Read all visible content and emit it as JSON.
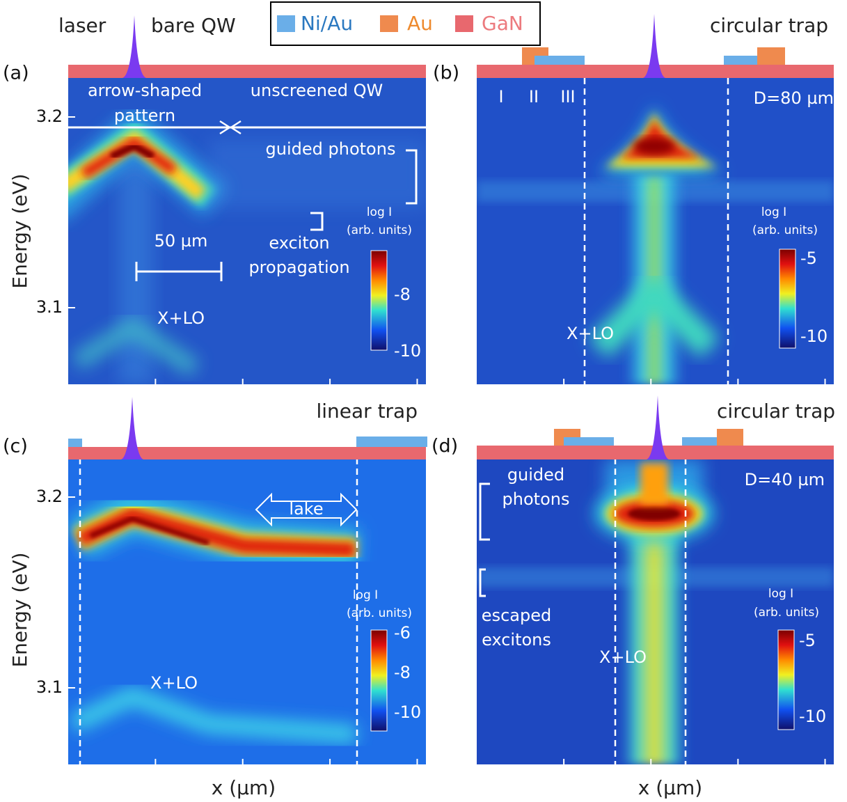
{
  "legend": {
    "items": [
      {
        "label": "Ni/Au",
        "color": "#6aaee8",
        "text_color": "#2a78c0"
      },
      {
        "label": "Au",
        "color": "#ef8a4e",
        "text_color": "#ee8a2e"
      },
      {
        "label": "GaN",
        "color": "#e8686e",
        "text_color": "#ec7a7e"
      }
    ]
  },
  "panels": [
    {
      "label": "(a)",
      "top_labels": [
        "laser",
        "bare QW"
      ],
      "annotations": [
        "arrow-shaped",
        "pattern",
        "unscreened QW",
        "guided photons",
        "exciton",
        "propagation",
        "50 µm",
        "X+LO"
      ],
      "y_ticks": [
        "3.2",
        "3.1"
      ],
      "y_label": "Energy (eV)",
      "colorbar": {
        "title": "log I",
        "subtitle": "(arb. units)",
        "ticks": [
          "-8",
          "-10"
        ]
      }
    },
    {
      "label": "(b)",
      "top_labels": [
        "circular trap"
      ],
      "annotations": [
        "I",
        "II",
        "III",
        "D=80 µm",
        "X+LO"
      ],
      "colorbar": {
        "title": "log I",
        "subtitle": "(arb. units)",
        "ticks": [
          "-5",
          "-10"
        ]
      }
    },
    {
      "label": "(c)",
      "top_labels": [
        "linear trap"
      ],
      "annotations": [
        "lake",
        "X+LO"
      ],
      "y_ticks": [
        "3.2",
        "3.1"
      ],
      "y_label": "Energy (eV)",
      "x_label": "x (µm)",
      "colorbar": {
        "title": "log I",
        "subtitle": "(arb. units)",
        "ticks": [
          "-6",
          "-8",
          "-10"
        ]
      }
    },
    {
      "label": "(d)",
      "top_labels": [
        "circular trap"
      ],
      "annotations": [
        "guided",
        "photons",
        "escaped",
        "excitons",
        "D=40 µm",
        "X+LO"
      ],
      "x_label": "x (µm)",
      "colorbar": {
        "title": "log I",
        "subtitle": "(arb. units)",
        "ticks": [
          "-5",
          "-10"
        ]
      }
    }
  ]
}
